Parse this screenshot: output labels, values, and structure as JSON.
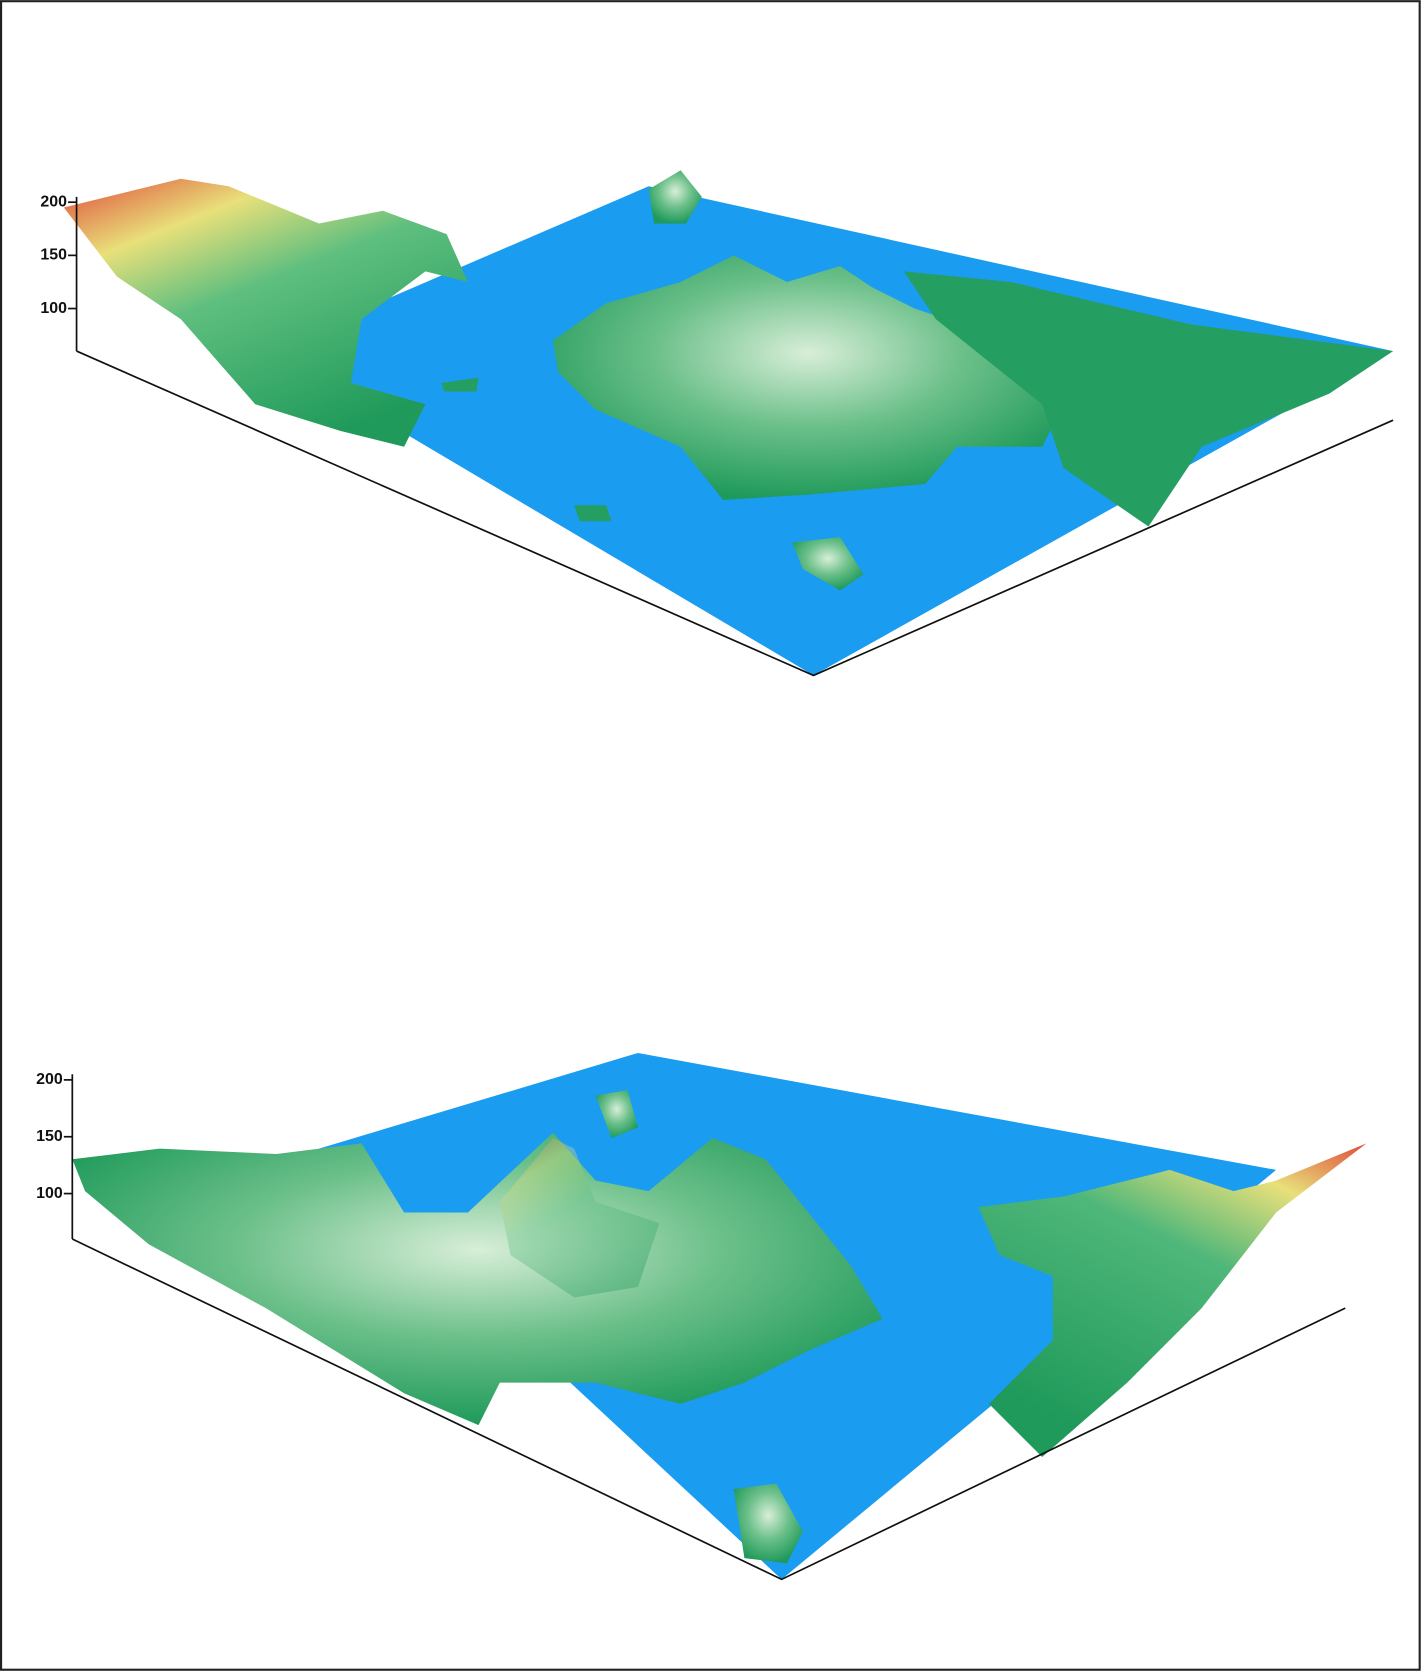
{
  "chart_data": [
    {
      "type": "surface",
      "zlim": [
        60,
        205
      ],
      "zticks": [
        100,
        150,
        200
      ]
    },
    {
      "type": "surface",
      "zlim": [
        60,
        205
      ],
      "zticks": [
        100,
        150,
        200
      ]
    }
  ]
}
